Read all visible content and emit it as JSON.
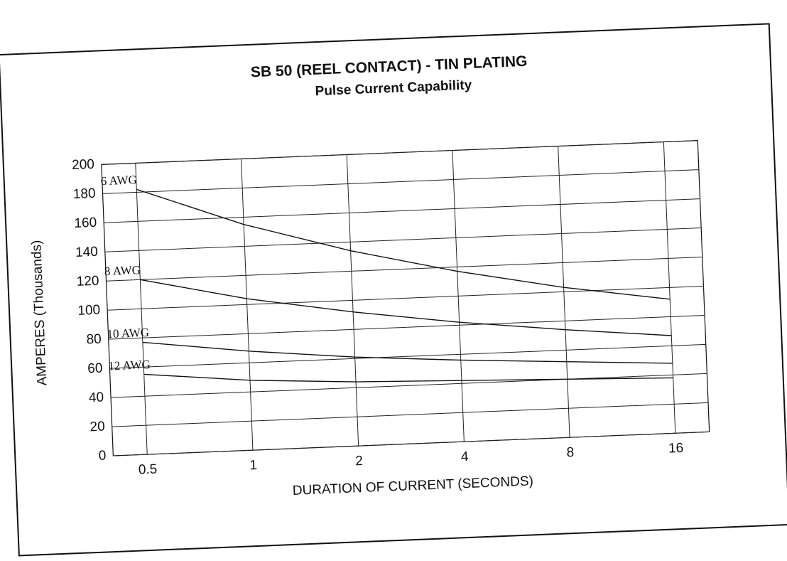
{
  "chart_data": {
    "type": "line",
    "title": "SB 50 (REEL CONTACT) - TIN PLATING",
    "subtitle": "Pulse Current Capability",
    "xlabel": "DURATION OF CURRENT (SECONDS)",
    "ylabel": "AMPERES (Thousands)",
    "x": [
      0.5,
      1,
      2,
      4,
      8,
      16
    ],
    "xscale": "log",
    "xlim": [
      0.4,
      20
    ],
    "xticks": [
      0.5,
      1,
      2,
      4,
      8,
      16
    ],
    "ylim": [
      0,
      200
    ],
    "yticks": [
      0,
      20,
      40,
      60,
      80,
      100,
      120,
      140,
      160,
      180,
      200
    ],
    "grid": true,
    "series": [
      {
        "name": "6 AWG",
        "color": "#111111",
        "values": [
          182,
          155,
          134,
          117,
          103,
          92
        ]
      },
      {
        "name": "8 AWG",
        "color": "#111111",
        "values": [
          120,
          104,
          92,
          82,
          74,
          67
        ]
      },
      {
        "name": "10 AWG",
        "color": "#111111",
        "values": [
          77,
          68,
          61,
          56,
          52,
          48
        ]
      },
      {
        "name": "12 AWG",
        "color": "#111111",
        "values": [
          55,
          48,
          44,
          42,
          40,
          38
        ]
      }
    ]
  }
}
